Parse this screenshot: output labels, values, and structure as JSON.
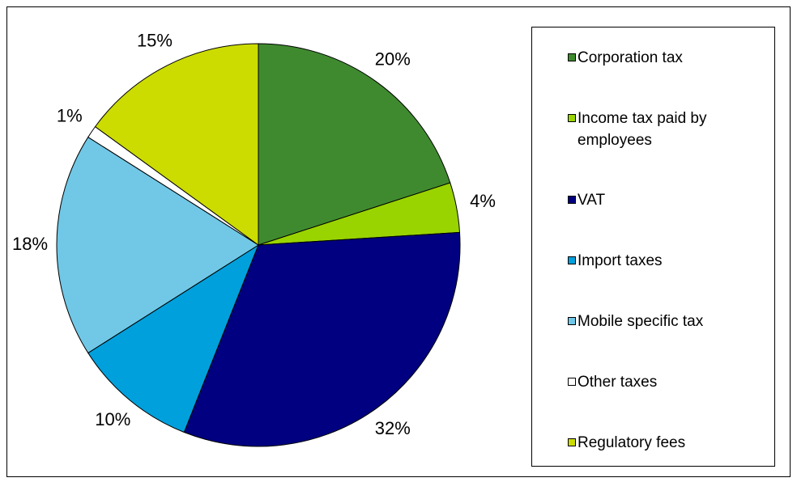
{
  "chart_data": {
    "type": "pie",
    "categories": [
      "Corporation tax",
      "Income tax paid by employees",
      "VAT",
      "Import taxes",
      "Mobile specific tax",
      "Other taxes",
      "Regulatory fees"
    ],
    "values": [
      20,
      4,
      32,
      10,
      18,
      1,
      15
    ],
    "value_labels": [
      "20%",
      "4%",
      "32%",
      "10%",
      "18%",
      "1%",
      "15%"
    ],
    "colors": [
      "#3f8a2f",
      "#99d400",
      "#000080",
      "#00a0dc",
      "#70c8e6",
      "#ffffff",
      "#ccdc00"
    ],
    "legend": "right"
  }
}
